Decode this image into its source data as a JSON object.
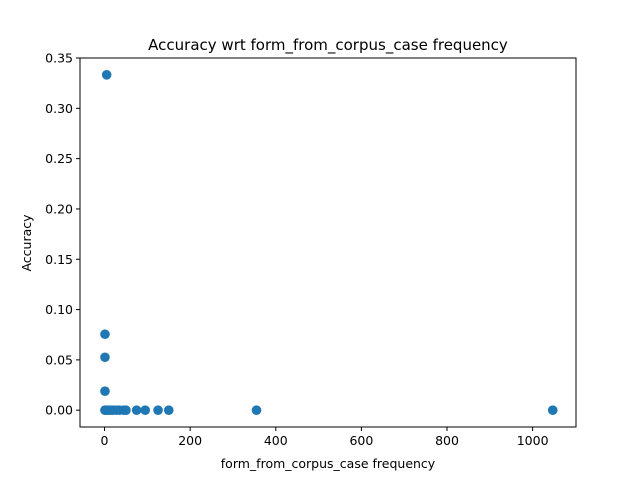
{
  "chart_data": {
    "type": "scatter",
    "title": "Accuracy wrt form_from_corpus_case frequency",
    "xlabel": "form_from_corpus_case frequency",
    "ylabel": "Accuracy",
    "xlim": [
      -57.3,
      1101.3
    ],
    "ylim": [
      -0.0167,
      0.35
    ],
    "xticks": [
      0,
      200,
      400,
      600,
      800,
      1000
    ],
    "xtick_labels": [
      "0",
      "200",
      "400",
      "600",
      "800",
      "1000"
    ],
    "yticks": [
      0.0,
      0.05,
      0.1,
      0.15,
      0.2,
      0.25,
      0.3,
      0.35
    ],
    "ytick_labels": [
      "0.00",
      "0.05",
      "0.10",
      "0.15",
      "0.20",
      "0.25",
      "0.30",
      "0.35"
    ],
    "grid": false,
    "marker_color": "#1f77b4",
    "points": [
      {
        "x": 5,
        "y": 0.3333
      },
      {
        "x": 1,
        "y": 0.0755
      },
      {
        "x": 1,
        "y": 0.0526
      },
      {
        "x": 1,
        "y": 0.0189
      },
      {
        "x": 1,
        "y": 0.0
      },
      {
        "x": 3,
        "y": 0.0
      },
      {
        "x": 6,
        "y": 0.0
      },
      {
        "x": 10,
        "y": 0.0
      },
      {
        "x": 15,
        "y": 0.0
      },
      {
        "x": 20,
        "y": 0.0
      },
      {
        "x": 28,
        "y": 0.0
      },
      {
        "x": 35,
        "y": 0.0
      },
      {
        "x": 45,
        "y": 0.0
      },
      {
        "x": 50,
        "y": 0.0
      },
      {
        "x": 75,
        "y": 0.0
      },
      {
        "x": 95,
        "y": 0.0
      },
      {
        "x": 125,
        "y": 0.0
      },
      {
        "x": 150,
        "y": 0.0
      },
      {
        "x": 355,
        "y": 0.0
      },
      {
        "x": 1047,
        "y": 0.0
      }
    ]
  }
}
